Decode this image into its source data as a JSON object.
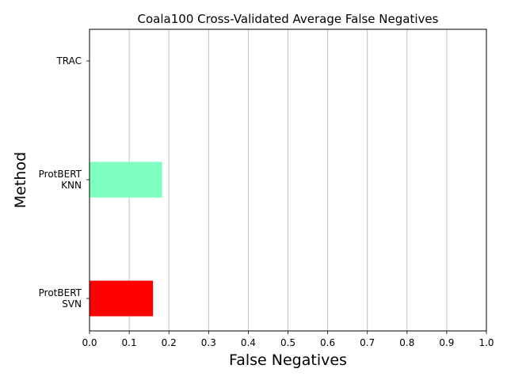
{
  "chart_data": {
    "type": "bar",
    "orientation": "horizontal",
    "title": "Coala100 Cross-Validated Average False Negatives",
    "xlabel": "False Negatives",
    "ylabel": "Method",
    "xlim": [
      0,
      1.0
    ],
    "grid": "vertical",
    "categories": [
      {
        "lines": [
          "TRAC"
        ]
      },
      {
        "lines": [
          "ProtBERT",
          "KNN"
        ]
      },
      {
        "lines": [
          "ProtBERT",
          "SVN"
        ]
      }
    ],
    "values": [
      0.0,
      0.183,
      0.16
    ],
    "colors": [
      "#1f77b4",
      "#7fffbf",
      "#ff0000"
    ],
    "xticks": [
      "0.0",
      "0.1",
      "0.2",
      "0.3",
      "0.4",
      "0.5",
      "0.6",
      "0.7",
      "0.8",
      "0.9",
      "1.0"
    ]
  }
}
